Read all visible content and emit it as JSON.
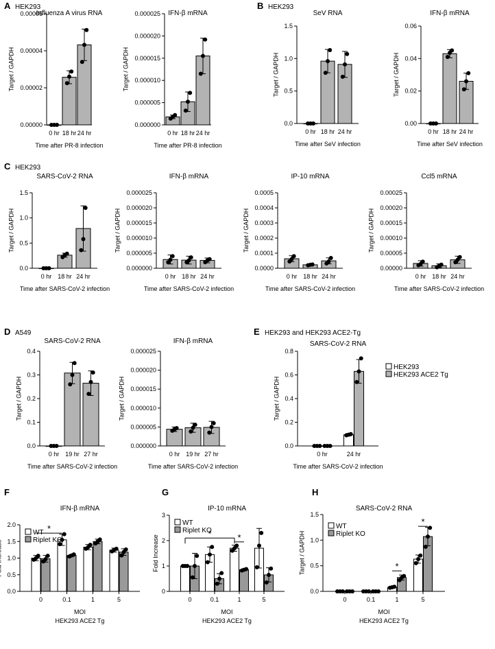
{
  "panels": [
    {
      "label": "A",
      "cell": "HEK293"
    },
    {
      "label": "B",
      "cell": "HEK293"
    },
    {
      "label": "C",
      "cell": "HEK293"
    },
    {
      "label": "D",
      "cell": "A549"
    },
    {
      "label": "E",
      "cell": "HEK293 and HEK293 ACE2-Tg"
    },
    {
      "label": "F",
      "cell": ""
    },
    {
      "label": "G",
      "cell": ""
    },
    {
      "label": "H",
      "cell": ""
    }
  ],
  "chart_data": [
    {
      "id": "A1",
      "panel": "A",
      "type": "bar",
      "title": "Influenza A virus RNA",
      "ylabel": "Target / GAPDH",
      "xlabel": "Time after PR-8 infection",
      "categories": [
        "0 hr",
        "18 hr",
        "24 hr"
      ],
      "ylim": [
        0,
        6e-05
      ],
      "yticks": [
        "0.00000",
        "0.00002",
        "0.00004",
        "0.00006"
      ],
      "series": [
        {
          "values": [
            0.0,
            2.57e-05,
            4.32e-05
          ],
          "err": [
            0.0,
            3.5e-06,
            8.5e-06
          ],
          "points": [
            [
              0,
              0,
              0
            ],
            [
              2.25e-05,
              2.6e-05,
              2.88e-05
            ],
            [
              3.4e-05,
              4.32e-05,
              5.12e-05
            ]
          ]
        }
      ]
    },
    {
      "id": "A2",
      "panel": "A",
      "type": "bar",
      "title": "IFN-β mRNA",
      "ylabel": "Target / GAPDH",
      "xlabel": "Time after PR-8 infection",
      "categories": [
        "0 hr",
        "18 hr",
        "24 hr"
      ],
      "ylim": [
        0,
        2.5e-05
      ],
      "yticks": [
        "0.000000",
        "0.000005",
        "0.000010",
        "0.000015",
        "0.000020",
        "0.000025"
      ],
      "series": [
        {
          "values": [
            1.8e-06,
            5.2e-06,
            1.55e-05
          ],
          "err": [
            4e-07,
            2.2e-06,
            4e-06
          ],
          "points": [
            [
              1.4e-06,
              1.8e-06,
              2.2e-06
            ],
            [
              3.2e-06,
              5.2e-06,
              7.2e-06
            ],
            [
              1.15e-05,
              1.55e-05,
              1.92e-05
            ]
          ]
        }
      ]
    },
    {
      "id": "B1",
      "panel": "B",
      "type": "bar",
      "title": "SeV RNA",
      "ylabel": "Target / GAPDH",
      "xlabel": "Time after SeV infection",
      "categories": [
        "0 hr",
        "18 hr",
        "24 hr"
      ],
      "ylim": [
        0,
        1.5
      ],
      "yticks": [
        "0.0",
        "0.5",
        "1.0",
        "1.5"
      ],
      "series": [
        {
          "values": [
            0.0,
            0.96,
            0.91
          ],
          "err": [
            0.0,
            0.18,
            0.2
          ],
          "points": [
            [
              0,
              0,
              0
            ],
            [
              0.78,
              0.96,
              1.13
            ],
            [
              0.72,
              0.91,
              1.07
            ]
          ]
        }
      ]
    },
    {
      "id": "B2",
      "panel": "B",
      "type": "bar",
      "title": "IFN-β mRNA",
      "ylabel": "Target / GAPDH",
      "xlabel": "Time after SeV infection",
      "categories": [
        "0 hr",
        "18 hr",
        "24 hr"
      ],
      "ylim": [
        0,
        0.06
      ],
      "yticks": [
        "0.00",
        "0.02",
        "0.04",
        "0.06"
      ],
      "series": [
        {
          "values": [
            0.0,
            0.043,
            0.026
          ],
          "err": [
            0.0,
            0.0025,
            0.005
          ],
          "points": [
            [
              0,
              0,
              0
            ],
            [
              0.041,
              0.0435,
              0.045
            ],
            [
              0.021,
              0.026,
              0.031
            ]
          ]
        }
      ]
    },
    {
      "id": "C1",
      "panel": "C",
      "type": "bar",
      "title": "SARS-CoV-2 RNA",
      "ylabel": "Target / GAPDH",
      "xlabel": "Time after SARS-CoV-2 infection",
      "categories": [
        "0 hr",
        "18 hr",
        "24 hr"
      ],
      "ylim": [
        0,
        1.5
      ],
      "yticks": [
        "0.0",
        "0.5",
        "1.0",
        "1.5"
      ],
      "series": [
        {
          "values": [
            0.0,
            0.26,
            0.79
          ],
          "err": [
            0.0,
            0.04,
            0.45
          ],
          "points": [
            [
              0,
              0,
              0
            ],
            [
              0.22,
              0.26,
              0.29
            ],
            [
              0.36,
              0.58,
              1.2
            ]
          ]
        }
      ]
    },
    {
      "id": "C2",
      "panel": "C",
      "type": "bar",
      "title": "IFN-β mRNA",
      "ylabel": "Target / GAPDH",
      "xlabel": "Time after SARS-CoV-2 infection",
      "categories": [
        "0 hr",
        "18 hr",
        "24 hr"
      ],
      "ylim": [
        0,
        2.5e-05
      ],
      "yticks": [
        "0.000000",
        "0.000005",
        "0.000010",
        "0.000015",
        "0.000020",
        "0.000025"
      ],
      "series": [
        {
          "values": [
            2.9e-06,
            2.7e-06,
            2.6e-06
          ],
          "err": [
            1.5e-06,
            1.3e-06,
            8e-07
          ],
          "points": [
            [
              2e-06,
              2.8e-06,
              4e-06
            ],
            [
              2e-06,
              2.6e-06,
              3.6e-06
            ],
            [
              2e-06,
              2.6e-06,
              3e-06
            ]
          ]
        }
      ]
    },
    {
      "id": "C3",
      "panel": "C",
      "type": "bar",
      "title": "IP-10 mRNA",
      "ylabel": "Target / GAPDH",
      "xlabel": "Time after SARS-CoV-2 infection",
      "categories": [
        "0 hr",
        "18 hr",
        "24 hr"
      ],
      "ylim": [
        0,
        0.0005
      ],
      "yticks": [
        "0.0000",
        "0.0001",
        "0.0002",
        "0.0003",
        "0.0004",
        "0.0005"
      ],
      "series": [
        {
          "values": [
            6.3e-05,
            2.3e-05,
            4.9e-05
          ],
          "err": [
            2e-05,
            6e-06,
            2e-05
          ],
          "points": [
            [
              4.5e-05,
              6e-05,
              8e-05
            ],
            [
              2e-05,
              2.3e-05,
              2.5e-05
            ],
            [
              3.2e-05,
              4.5e-05,
              6.8e-05
            ]
          ]
        }
      ]
    },
    {
      "id": "C4",
      "panel": "C",
      "type": "bar",
      "title": "Ccl5 mRNA",
      "ylabel": "Target / GAPDH",
      "xlabel": "Time after SARS-CoV-2 infection",
      "categories": [
        "0 hr",
        "18 hr",
        "24 hr"
      ],
      "ylim": [
        0,
        0.00025
      ],
      "yticks": [
        "0.00000",
        "0.00005",
        "0.00010",
        "0.00015",
        "0.00020",
        "0.00025"
      ],
      "series": [
        {
          "values": [
            1.6e-05,
            8.5e-06,
            2.8e-05
          ],
          "err": [
            9e-06,
            6e-06,
            1.2e-05
          ],
          "points": [
            [
              1e-05,
              1.4e-05,
              2.2e-05
            ],
            [
              3e-06,
              8e-06,
              1.2e-05
            ],
            [
              2e-05,
              2.8e-05,
              3.7e-05
            ]
          ]
        }
      ]
    },
    {
      "id": "D1",
      "panel": "D",
      "type": "bar",
      "title": "SARS-CoV-2 RNA",
      "ylabel": "Target / GAPDH",
      "xlabel": "Time after SARS-CoV-2 infection",
      "categories": [
        "0 hr",
        "19 hr",
        "27 hr"
      ],
      "ylim": [
        0,
        0.4
      ],
      "yticks": [
        "0.0",
        "0.1",
        "0.2",
        "0.3",
        "0.4"
      ],
      "series": [
        {
          "values": [
            0.0,
            0.308,
            0.265
          ],
          "err": [
            0.0,
            0.045,
            0.052
          ],
          "points": [
            [
              0,
              0,
              0
            ],
            [
              0.26,
              0.3,
              0.35
            ],
            [
              0.22,
              0.27,
              0.31
            ]
          ]
        }
      ]
    },
    {
      "id": "D2",
      "panel": "D",
      "type": "bar",
      "title": "IFN-β mRNA",
      "ylabel": "Target / GAPDH",
      "xlabel": "Time after SARS-CoV-2 infection",
      "categories": [
        "0 hr",
        "19 hr",
        "27 hr"
      ],
      "ylim": [
        0,
        2.5e-05
      ],
      "yticks": [
        "0.000000",
        "0.000005",
        "0.000010",
        "0.000015",
        "0.000020",
        "0.000025"
      ],
      "series": [
        {
          "values": [
            4.4e-06,
            4.8e-06,
            4.9e-06
          ],
          "err": [
            6e-07,
            1.2e-06,
            1.6e-06
          ],
          "points": [
            [
              4e-06,
              4.4e-06,
              4.7e-06
            ],
            [
              3.8e-06,
              4.8e-06,
              5.6e-06
            ],
            [
              3.5e-06,
              5e-06,
              6e-06
            ]
          ]
        }
      ]
    },
    {
      "id": "E1",
      "panel": "E",
      "type": "bar",
      "title": "SARS-CoV-2 RNA",
      "ylabel": "Target / GAPDH",
      "xlabel": "Time after SARS-CoV-2 infection",
      "categories": [
        "0 hr",
        "24 hr"
      ],
      "ylim": [
        0,
        0.8
      ],
      "yticks": [
        "0.0",
        "0.2",
        "0.4",
        "0.6",
        "0.8"
      ],
      "legend_pos": "right",
      "series": [
        {
          "name": "HEK293",
          "color": "#ffffff",
          "values": [
            0.0,
            0.095
          ],
          "err": [
            0.0,
            0.01
          ],
          "points": [
            [
              0,
              0,
              0
            ],
            [
              0.09,
              0.095,
              0.1
            ]
          ]
        },
        {
          "name": "HEK293 ACE2 Tg",
          "color": "#b3b3b3",
          "values": [
            0.0,
            0.63
          ],
          "err": [
            0.0,
            0.1
          ],
          "points": [
            [
              0,
              0,
              0
            ],
            [
              0.54,
              0.63,
              0.74
            ]
          ]
        }
      ]
    },
    {
      "id": "F1",
      "panel": "F",
      "type": "bar",
      "title": "IFN-β mRNA",
      "ylabel": "Fold Increase",
      "xlabel": "MOI",
      "xlabel2": "HEK293 ACE2 Tg",
      "categories": [
        "0",
        "0.1",
        "1",
        "5"
      ],
      "ylim": [
        0,
        2
      ],
      "yticks": [
        "0.0",
        "0.5",
        "1.0",
        "1.5",
        "2.0"
      ],
      "legend_pos": "top-left",
      "series": [
        {
          "name": "WT",
          "color": "#ffffff",
          "values": [
            1.0,
            1.55,
            1.33,
            1.24
          ],
          "err": [
            0.08,
            0.17,
            0.08,
            0.06
          ],
          "points": [
            [
              0.95,
              1.0,
              1.07
            ],
            [
              1.42,
              1.55,
              1.72
            ],
            [
              1.28,
              1.33,
              1.4
            ],
            [
              1.2,
              1.25,
              1.28
            ]
          ]
        },
        {
          "name": "Riplet KO",
          "color": "#999999",
          "values": [
            0.98,
            1.08,
            1.5,
            1.18
          ],
          "err": [
            0.1,
            0.03,
            0.07,
            0.1
          ],
          "points": [
            [
              0.9,
              0.97,
              1.07
            ],
            [
              1.05,
              1.08,
              1.11
            ],
            [
              1.44,
              1.5,
              1.56
            ],
            [
              1.08,
              1.18,
              1.26
            ]
          ]
        }
      ],
      "annotations": [
        {
          "text": "*",
          "from": [
            0,
            "WT"
          ],
          "to": [
            1,
            "WT"
          ],
          "y": 1.75
        }
      ]
    },
    {
      "id": "G1",
      "panel": "G",
      "type": "bar",
      "title": "IP-10 mRNA",
      "ylabel": "Fold Increase",
      "xlabel": "MOI",
      "xlabel2": "HEK293 ACE2 Tg",
      "categories": [
        "0",
        "0.1",
        "1",
        "5"
      ],
      "ylim": [
        0,
        3
      ],
      "yticks": [
        "0",
        "1",
        "2",
        "3"
      ],
      "legend_pos": "top-left",
      "series": [
        {
          "name": "WT",
          "color": "#ffffff",
          "values": [
            1.0,
            1.45,
            1.7,
            1.7
          ],
          "err": [
            0.0,
            0.3,
            0.12,
            0.78
          ],
          "points": [
            [
              1.0,
              1.0,
              1.0
            ],
            [
              1.15,
              1.45,
              1.75
            ],
            [
              1.6,
              1.7,
              1.8
            ],
            [
              0.95,
              1.8,
              2.3
            ]
          ]
        },
        {
          "name": "Riplet KO",
          "color": "#999999",
          "values": [
            1.0,
            0.5,
            0.85,
            0.65
          ],
          "err": [
            0.5,
            0.2,
            0.04,
            0.28
          ],
          "points": [
            [
              0.55,
              1.0,
              1.4
            ],
            [
              0.3,
              0.5,
              0.72
            ],
            [
              0.82,
              0.85,
              0.88
            ],
            [
              0.35,
              0.65,
              0.9
            ]
          ]
        }
      ],
      "annotations": [
        {
          "text": "*",
          "from": [
            0,
            "WT"
          ],
          "to": [
            2,
            "WT"
          ],
          "y": 2.1
        },
        {
          "text": "*",
          "from": [
            2,
            "WT"
          ],
          "to": [
            2,
            "Riplet KO"
          ],
          "y": 1.95
        }
      ]
    },
    {
      "id": "H1",
      "panel": "H",
      "type": "bar",
      "title": "SARS-CoV-2 RNA",
      "ylabel": "Target / GAPDH",
      "xlabel": "MOI",
      "xlabel2": "HEK293 ACE2 Tg",
      "categories": [
        "0",
        "0.1",
        "1",
        "5"
      ],
      "ylim": [
        0,
        1.5
      ],
      "yticks": [
        "0.0",
        "0.5",
        "1.0",
        "1.5"
      ],
      "legend_pos": "top-left",
      "series": [
        {
          "name": "WT",
          "color": "#ffffff",
          "values": [
            0.0,
            0.0,
            0.08,
            0.63
          ],
          "err": [
            0.0,
            0.0,
            0.02,
            0.08
          ],
          "points": [
            [
              0,
              0,
              0
            ],
            [
              0,
              0,
              0
            ],
            [
              0.07,
              0.08,
              0.09
            ],
            [
              0.55,
              0.63,
              0.7
            ]
          ]
        },
        {
          "name": "Riplet KO",
          "color": "#999999",
          "values": [
            0.0,
            0.0,
            0.27,
            1.07
          ],
          "err": [
            0.0,
            0.0,
            0.05,
            0.18
          ],
          "points": [
            [
              0,
              0,
              0
            ],
            [
              0,
              0,
              0
            ],
            [
              0.22,
              0.27,
              0.3
            ],
            [
              0.87,
              1.07,
              1.24
            ]
          ]
        }
      ],
      "annotations": [
        {
          "text": "*",
          "from": [
            2,
            "WT"
          ],
          "to": [
            2,
            "Riplet KO"
          ],
          "y": 0.4
        },
        {
          "text": "*",
          "from": [
            3,
            "WT"
          ],
          "to": [
            3,
            "Riplet KO"
          ],
          "y": 1.27
        }
      ]
    }
  ]
}
